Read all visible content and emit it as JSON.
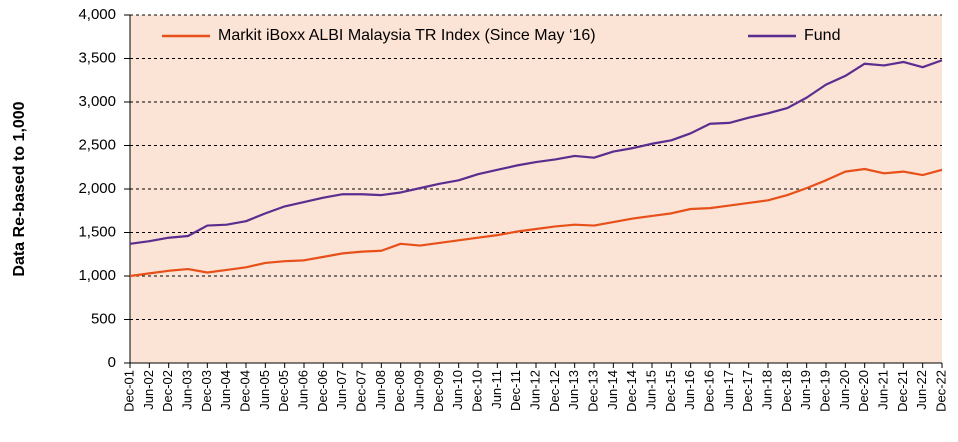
{
  "chart_data": {
    "type": "line",
    "y_label": "Data Re-based to 1,000",
    "categories": [
      "Dec-01",
      "Jun-02",
      "Dec-02",
      "Jun-03",
      "Dec-03",
      "Jun-04",
      "Dec-04",
      "Jun-05",
      "Dec-05",
      "Jun-06",
      "Dec-06",
      "Jun-07",
      "Dec-07",
      "Jun-08",
      "Dec-08",
      "Jun-09",
      "Dec-09",
      "Jun-10",
      "Dec-10",
      "Jun-11",
      "Dec-11",
      "Jun-12",
      "Dec-12",
      "Jun-13",
      "Dec-13",
      "Jun-14",
      "Dec-14",
      "Jun-15",
      "Dec-15",
      "Jun-16",
      "Dec-16",
      "Jun-17",
      "Dec-17",
      "Jun-18",
      "Dec-18",
      "Jun-19",
      "Dec-19",
      "Jun-20",
      "Dec-20",
      "Jun-21",
      "Dec-21",
      "Jun-22",
      "Dec-22"
    ],
    "series": [
      {
        "name": "Markit iBoxx ALBI Malaysia TR Index (Since May ‘16)",
        "color": "#e8501a",
        "values": [
          1000,
          1030,
          1060,
          1080,
          1040,
          1070,
          1100,
          1150,
          1170,
          1180,
          1220,
          1260,
          1280,
          1290,
          1370,
          1350,
          1380,
          1410,
          1440,
          1470,
          1510,
          1540,
          1570,
          1590,
          1580,
          1620,
          1660,
          1690,
          1720,
          1770,
          1780,
          1810,
          1840,
          1870,
          1930,
          2010,
          2100,
          2200,
          2230,
          2180,
          2200,
          2160,
          2220
        ]
      },
      {
        "name": "Fund",
        "color": "#5b2d8e",
        "values": [
          1370,
          1400,
          1440,
          1460,
          1580,
          1590,
          1630,
          1720,
          1800,
          1850,
          1900,
          1940,
          1940,
          1930,
          1960,
          2010,
          2060,
          2100,
          2170,
          2220,
          2270,
          2310,
          2340,
          2380,
          2360,
          2430,
          2470,
          2520,
          2560,
          2640,
          2750,
          2760,
          2820,
          2870,
          2930,
          3050,
          3200,
          3300,
          3440,
          3420,
          3460,
          3400,
          3480
        ]
      }
    ],
    "ylim": [
      0,
      4000
    ],
    "yticks": [
      0,
      500,
      {
        "value": 1000,
        "label": "1,000"
      },
      {
        "value": 1500,
        "label": "1,500"
      },
      {
        "value": 2000,
        "label": "2,000"
      },
      {
        "value": 2500,
        "label": "2,500"
      },
      {
        "value": 3000,
        "label": "3,000"
      },
      {
        "value": 3500,
        "label": "3,500"
      },
      {
        "value": 4000,
        "label": "4,000"
      }
    ],
    "grid": true,
    "legend": "top",
    "plot_background": "#fbe3d6"
  }
}
